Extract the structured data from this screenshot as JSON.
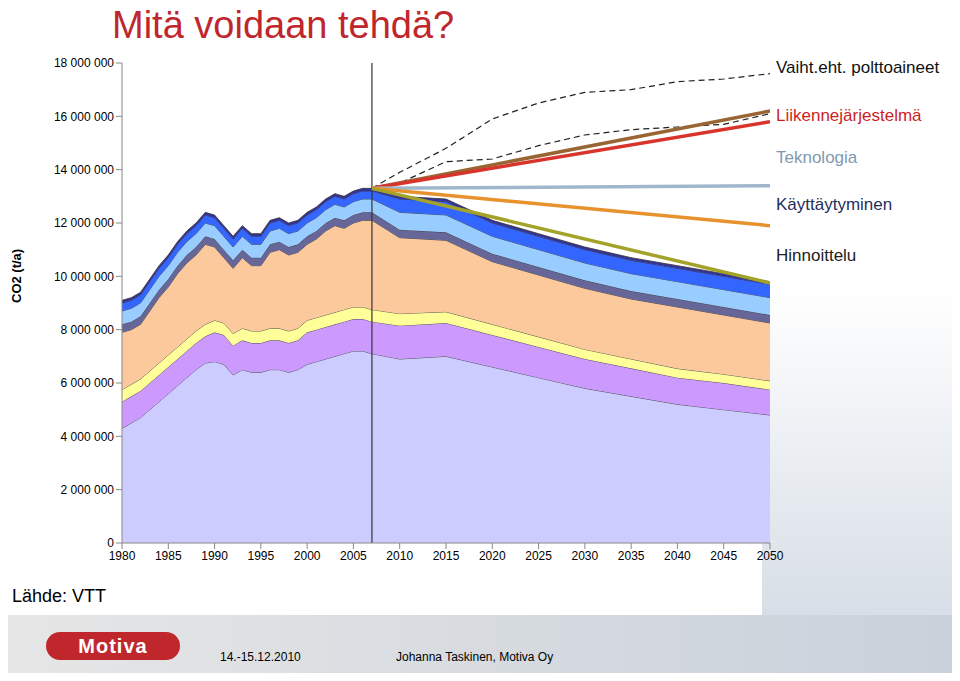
{
  "chart_data": {
    "type": "area",
    "title": "Mitä voidaan tehdä?",
    "y_label": "CO2 (t/a)",
    "stacked": true,
    "grid": false,
    "x": [
      1980,
      1981,
      1982,
      1983,
      1984,
      1985,
      1986,
      1987,
      1988,
      1989,
      1990,
      1991,
      1992,
      1993,
      1994,
      1995,
      1996,
      1997,
      1998,
      1999,
      2000,
      2001,
      2002,
      2003,
      2004,
      2005,
      2006,
      2007,
      2010,
      2015,
      2020,
      2025,
      2030,
      2035,
      2040,
      2045,
      2050
    ],
    "xlim": [
      1980,
      2050
    ],
    "xticks": [
      1980,
      1985,
      1990,
      1995,
      2000,
      2005,
      2010,
      2015,
      2020,
      2025,
      2030,
      2035,
      2040,
      2045,
      2050
    ],
    "ylim": [
      0,
      18000000
    ],
    "yticks": [
      0,
      {
        "value": 2000000,
        "label": "2 000 000"
      },
      {
        "value": 4000000,
        "label": "4 000 000"
      },
      {
        "value": 6000000,
        "label": "6 000 000"
      },
      {
        "value": 8000000,
        "label": "8 000 000"
      },
      {
        "value": 10000000,
        "label": "10 000 000"
      },
      {
        "value": 12000000,
        "label": "12 000 000"
      },
      {
        "value": 14000000,
        "label": "14 000 000"
      },
      {
        "value": 16000000,
        "label": "16 000 000"
      },
      {
        "value": 18000000,
        "label": "18 000 000"
      }
    ],
    "reference_x": 2007,
    "series": [
      {
        "type": "area",
        "color": "#ccccff",
        "values": [
          4300000,
          4500000,
          4700000,
          5000000,
          5300000,
          5600000,
          5900000,
          6200000,
          6500000,
          6750000,
          6800000,
          6700000,
          6300000,
          6500000,
          6400000,
          6400000,
          6500000,
          6500000,
          6400000,
          6500000,
          6700000,
          6800000,
          6900000,
          7000000,
          7100000,
          7200000,
          7200000,
          7100000,
          6900000,
          7000000,
          6600000,
          6200000,
          5800000,
          5500000,
          5200000,
          5000000,
          4800000
        ]
      },
      {
        "type": "area",
        "color": "#cc99ff",
        "values": [
          1000000,
          1000000,
          1000000,
          1000000,
          1000000,
          1000000,
          1000000,
          1000000,
          1000000,
          1000000,
          1100000,
          1100000,
          1100000,
          1100000,
          1100000,
          1100000,
          1100000,
          1100000,
          1100000,
          1100000,
          1200000,
          1200000,
          1200000,
          1200000,
          1200000,
          1200000,
          1200000,
          1200000,
          1250000,
          1250000,
          1200000,
          1150000,
          1100000,
          1050000,
          1000000,
          1000000,
          950000
        ]
      },
      {
        "type": "area",
        "color": "#ffff99",
        "values": [
          450000,
          450000,
          450000,
          450000,
          450000,
          450000,
          450000,
          450000,
          450000,
          450000,
          450000,
          450000,
          450000,
          450000,
          450000,
          450000,
          450000,
          450000,
          450000,
          450000,
          450000,
          450000,
          450000,
          450000,
          450000,
          450000,
          450000,
          450000,
          450000,
          420000,
          400000,
          380000,
          360000,
          350000,
          340000,
          330000,
          330000
        ]
      },
      {
        "type": "area",
        "color": "#fcc99c",
        "values": [
          2150000,
          2050000,
          2050000,
          2250000,
          2450000,
          2550000,
          2750000,
          2850000,
          2850000,
          3000000,
          2750000,
          2450000,
          2450000,
          2650000,
          2450000,
          2450000,
          2850000,
          2950000,
          2850000,
          2850000,
          2850000,
          2950000,
          3150000,
          3250000,
          3050000,
          3150000,
          3250000,
          3350000,
          2850000,
          2680000,
          2350000,
          2320000,
          2290000,
          2250000,
          2310000,
          2220000,
          2170000
        ]
      },
      {
        "type": "area",
        "color": "#666699",
        "values": [
          300000,
          300000,
          300000,
          300000,
          300000,
          300000,
          300000,
          300000,
          300000,
          300000,
          300000,
          300000,
          300000,
          300000,
          300000,
          300000,
          300000,
          300000,
          300000,
          300000,
          300000,
          300000,
          300000,
          300000,
          300000,
          300000,
          300000,
          300000,
          300000,
          300000,
          300000,
          300000,
          300000,
          300000,
          300000,
          300000,
          300000
        ]
      },
      {
        "type": "area",
        "color": "#99ccff",
        "values": [
          500000,
          500000,
          500000,
          500000,
          500000,
          500000,
          500000,
          500000,
          500000,
          500000,
          500000,
          500000,
          500000,
          500000,
          500000,
          500000,
          500000,
          500000,
          500000,
          500000,
          500000,
          500000,
          500000,
          500000,
          500000,
          500000,
          500000,
          500000,
          650000,
          650000,
          650000,
          650000,
          650000,
          650000,
          650000,
          650000,
          650000
        ]
      },
      {
        "type": "area",
        "color": "#3366ff",
        "values": [
          300000,
          300000,
          300000,
          300000,
          300000,
          300000,
          300000,
          300000,
          300000,
          300000,
          300000,
          300000,
          300000,
          300000,
          300000,
          300000,
          300000,
          300000,
          300000,
          300000,
          300000,
          300000,
          300000,
          300000,
          300000,
          300000,
          300000,
          300000,
          500000,
          500000,
          500000,
          500000,
          500000,
          500000,
          500000,
          500000,
          500000
        ]
      },
      {
        "type": "area",
        "color": "#333399",
        "values": [
          100000,
          100000,
          100000,
          100000,
          100000,
          100000,
          100000,
          100000,
          100000,
          100000,
          100000,
          100000,
          100000,
          100000,
          100000,
          100000,
          100000,
          100000,
          100000,
          100000,
          100000,
          100000,
          100000,
          100000,
          100000,
          100000,
          100000,
          100000,
          100000,
          100000,
          100000,
          100000,
          100000,
          100000,
          100000,
          100000,
          100000
        ]
      },
      {
        "type": "line",
        "line_style": "dashed",
        "color": "#222222",
        "values": [
          null,
          null,
          null,
          null,
          null,
          null,
          null,
          null,
          null,
          null,
          null,
          null,
          null,
          null,
          null,
          null,
          null,
          null,
          null,
          null,
          null,
          null,
          null,
          null,
          null,
          null,
          null,
          13300000,
          13900000,
          14800000,
          15900000,
          16500000,
          16900000,
          17000000,
          17300000,
          17400000,
          17600000
        ]
      },
      {
        "type": "line",
        "line_style": "dashed",
        "color": "#222222",
        "values": [
          null,
          null,
          null,
          null,
          null,
          null,
          null,
          null,
          null,
          null,
          null,
          null,
          null,
          null,
          null,
          null,
          null,
          null,
          null,
          null,
          null,
          null,
          null,
          null,
          null,
          null,
          null,
          13300000,
          13500000,
          14300000,
          14400000,
          14900000,
          15300000,
          15500000,
          15600000,
          15700000,
          16100000
        ]
      },
      {
        "type": "line",
        "line_style": "solid",
        "color": "#996633",
        "values": [
          null,
          null,
          null,
          null,
          null,
          null,
          null,
          null,
          null,
          null,
          null,
          null,
          null,
          null,
          null,
          null,
          null,
          null,
          null,
          null,
          null,
          null,
          null,
          null,
          null,
          null,
          null,
          13300000,
          null,
          null,
          null,
          null,
          null,
          null,
          null,
          null,
          16200000
        ]
      },
      {
        "type": "line",
        "line_style": "solid",
        "color": "#d9342b",
        "values": [
          null,
          null,
          null,
          null,
          null,
          null,
          null,
          null,
          null,
          null,
          null,
          null,
          null,
          null,
          null,
          null,
          null,
          null,
          null,
          null,
          null,
          null,
          null,
          null,
          null,
          null,
          null,
          13300000,
          null,
          null,
          null,
          null,
          null,
          null,
          null,
          null,
          15800000
        ]
      },
      {
        "type": "line",
        "line_style": "solid",
        "color": "#9fb6cd",
        "values": [
          null,
          null,
          null,
          null,
          null,
          null,
          null,
          null,
          null,
          null,
          null,
          null,
          null,
          null,
          null,
          null,
          null,
          null,
          null,
          null,
          null,
          null,
          null,
          null,
          null,
          null,
          null,
          13300000,
          null,
          null,
          null,
          null,
          null,
          null,
          null,
          null,
          13400000
        ]
      },
      {
        "type": "line",
        "line_style": "solid",
        "color": "#e8922e",
        "values": [
          null,
          null,
          null,
          null,
          null,
          null,
          null,
          null,
          null,
          null,
          null,
          null,
          null,
          null,
          null,
          null,
          null,
          null,
          null,
          null,
          null,
          null,
          null,
          null,
          null,
          null,
          null,
          13300000,
          null,
          null,
          null,
          null,
          null,
          null,
          null,
          null,
          11900000
        ]
      },
      {
        "type": "line",
        "line_style": "solid",
        "color": "#a3a32a",
        "values": [
          null,
          null,
          null,
          null,
          null,
          null,
          null,
          null,
          null,
          null,
          null,
          null,
          null,
          null,
          null,
          null,
          null,
          null,
          null,
          null,
          null,
          null,
          null,
          null,
          null,
          null,
          null,
          13300000,
          null,
          null,
          null,
          null,
          null,
          null,
          null,
          null,
          9750000
        ]
      }
    ],
    "annotations": [
      {
        "text": "Vaiht.eht. polttoaineet",
        "color": "#111111"
      },
      {
        "text": "Liikennejärjestelmä",
        "color": "#cc1f1f"
      },
      {
        "text": "Teknologia",
        "color": "#7f9ab0"
      },
      {
        "text": "Käyttäytyminen",
        "color": "#1f2f5a"
      },
      {
        "text": "Hinnoittelu",
        "color": "#222222"
      }
    ]
  },
  "slide": {
    "source": "Lähde: VTT",
    "logo": "Motiva",
    "date": "14.-15.12.2010",
    "author": "Johanna Taskinen, Motiva Oy"
  }
}
